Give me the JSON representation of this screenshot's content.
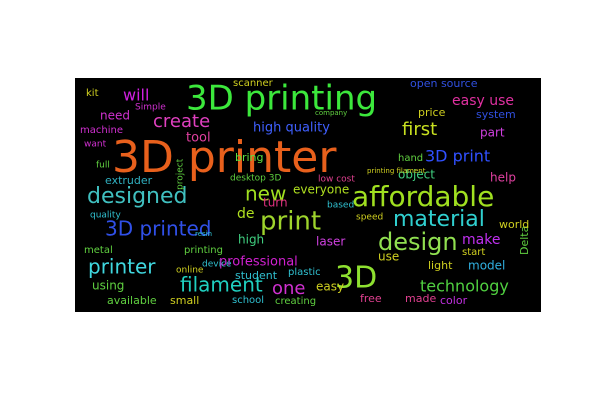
{
  "chart_data": {
    "type": "wordcloud",
    "background": "#000000",
    "words": [
      "3D printer",
      "3D printing",
      "affordable",
      "print",
      "3D",
      "design",
      "material",
      "designed",
      "3D printed",
      "printer",
      "filament",
      "new",
      "one",
      "create",
      "will",
      "first",
      "3D print",
      "technology",
      "easy use",
      "high quality",
      "professional",
      "tool",
      "make",
      "model",
      "laser",
      "high",
      "de",
      "everyone",
      "turn",
      "object",
      "help",
      "part",
      "open source",
      "need",
      "bring",
      "extruder",
      "machine",
      "using",
      "metal",
      "available",
      "small",
      "student",
      "plastic",
      "easy",
      "use",
      "light",
      "made",
      "color",
      "free",
      "school",
      "creating",
      "Delta",
      "world",
      "start",
      "price",
      "system",
      "Simple",
      "kit",
      "scanner",
      "project",
      "desktop 3D",
      "device",
      "quality",
      "full",
      "want",
      "online",
      "printing",
      "hand",
      "low cost",
      "based",
      "speed",
      "printing filament",
      "company",
      "resin"
    ],
    "values": [
      44,
      34,
      28,
      26,
      30,
      24,
      22,
      22,
      20,
      20,
      20,
      20,
      18,
      18,
      16,
      18,
      16,
      16,
      14,
      13,
      13,
      13,
      14,
      12,
      12,
      12,
      14,
      12,
      12,
      12,
      12,
      12,
      11,
      12,
      11,
      11,
      10,
      12,
      10,
      11,
      11,
      11,
      10,
      12,
      12,
      11,
      11,
      11,
      11,
      10,
      10,
      11,
      11,
      10,
      11,
      11,
      9,
      10,
      10,
      9,
      9,
      9,
      9,
      9,
      9,
      9,
      10,
      10,
      9,
      9,
      9,
      7,
      7,
      7
    ],
    "colors": [
      "#e8601c",
      "#3ce83c",
      "#a0e020",
      "#9ed42c",
      "#8ee030",
      "#90e050",
      "#30d0d0",
      "#40c0c0",
      "#3050e8",
      "#40d8e0",
      "#20d0c0",
      "#a0e020",
      "#d030d0",
      "#e040c0",
      "#d020e0",
      "#c8e020",
      "#3050ff",
      "#50d040",
      "#e030a0",
      "#4060ff",
      "#d020d0",
      "#e040a0",
      "#c030f0",
      "#30b0e0",
      "#d040e0",
      "#40d080",
      "#b0e020",
      "#b0e020",
      "#e03080",
      "#40d080",
      "#e040a0",
      "#d040e0",
      "#3050e0",
      "#d030d0",
      "#60e040",
      "#30b0c0",
      "#d030d0",
      "#60d040",
      "#60d040",
      "#60d040",
      "#d0d020",
      "#30c0d0",
      "#30c0d0",
      "#d0d020",
      "#d0d020",
      "#d0d020",
      "#e04090",
      "#c030e0",
      "#e04090",
      "#30c0d0",
      "#60d040",
      "#60d040",
      "#d0d020",
      "#d0d020",
      "#d0d020",
      "#3050e0",
      "#d030d0",
      "#d0d020",
      "#d0d020",
      "#60d040",
      "#60d040",
      "#30c0d0",
      "#30c0d0",
      "#60d040",
      "#d030d0",
      "#d0d020",
      "#60d040",
      "#60d040",
      "#e04090",
      "#30c0d0",
      "#d0d020",
      "#d0d020",
      "#60d040",
      "#30c0d0"
    ]
  }
}
